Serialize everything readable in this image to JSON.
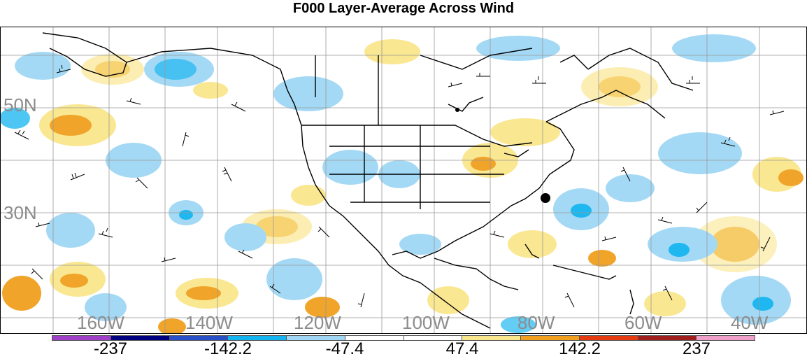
{
  "title": "F000 Layer-Average Across Wind",
  "lat_labels": [
    "50N",
    "30N"
  ],
  "lon_labels": [
    "160W",
    "140W",
    "120W",
    "100W",
    "80W",
    "60W",
    "40W"
  ],
  "colorbar": {
    "colors": [
      "#a040c8",
      "#000080",
      "#2850c8",
      "#14b4f0",
      "#a0d7f5",
      "#ffffff",
      "#ffffff",
      "#fae68c",
      "#f0a01e",
      "#e63c14",
      "#a01e1e",
      "#f0a0c8"
    ],
    "labels": [
      "-237",
      "-142.2",
      "-47.4",
      "47.4",
      "142.2",
      "237"
    ]
  },
  "markers": [
    "station-dot-north",
    "station-dot-carolina"
  ]
}
